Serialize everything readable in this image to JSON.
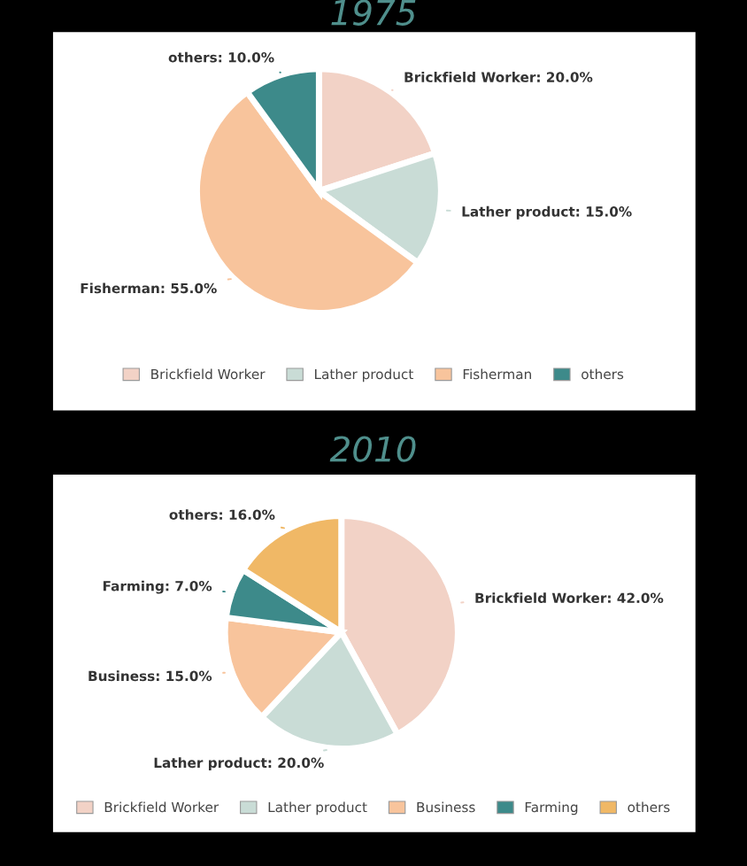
{
  "chart_data": [
    {
      "type": "pie",
      "title": "1975",
      "legend": "bottom",
      "categories": [
        "Brickfield Worker",
        "Lather product",
        "Fisherman",
        "others"
      ],
      "values": [
        20.0,
        15.0,
        55.0,
        10.0
      ],
      "colors": [
        "#f2d2c6",
        "#c9dcd6",
        "#f8c49c",
        "#3d8a8a"
      ],
      "value_labels": [
        "Brickfield Worker: 20.0%",
        "Lather product: 15.0%",
        "Fisherman: 55.0%",
        "others: 10.0%"
      ]
    },
    {
      "type": "pie",
      "title": "2010",
      "legend": "bottom",
      "categories": [
        "Brickfield Worker",
        "Lather product",
        "Business",
        "Farming",
        "others"
      ],
      "values": [
        42.0,
        20.0,
        15.0,
        7.0,
        16.0
      ],
      "colors": [
        "#f2d2c6",
        "#c9dcd6",
        "#f8c49c",
        "#3d8a8a",
        "#f0b866"
      ],
      "value_labels": [
        "Brickfield Worker: 42.0%",
        "Lather product: 20.0%",
        "Business: 15.0%",
        "Farming: 7.0%",
        "others: 16.0%"
      ]
    }
  ]
}
